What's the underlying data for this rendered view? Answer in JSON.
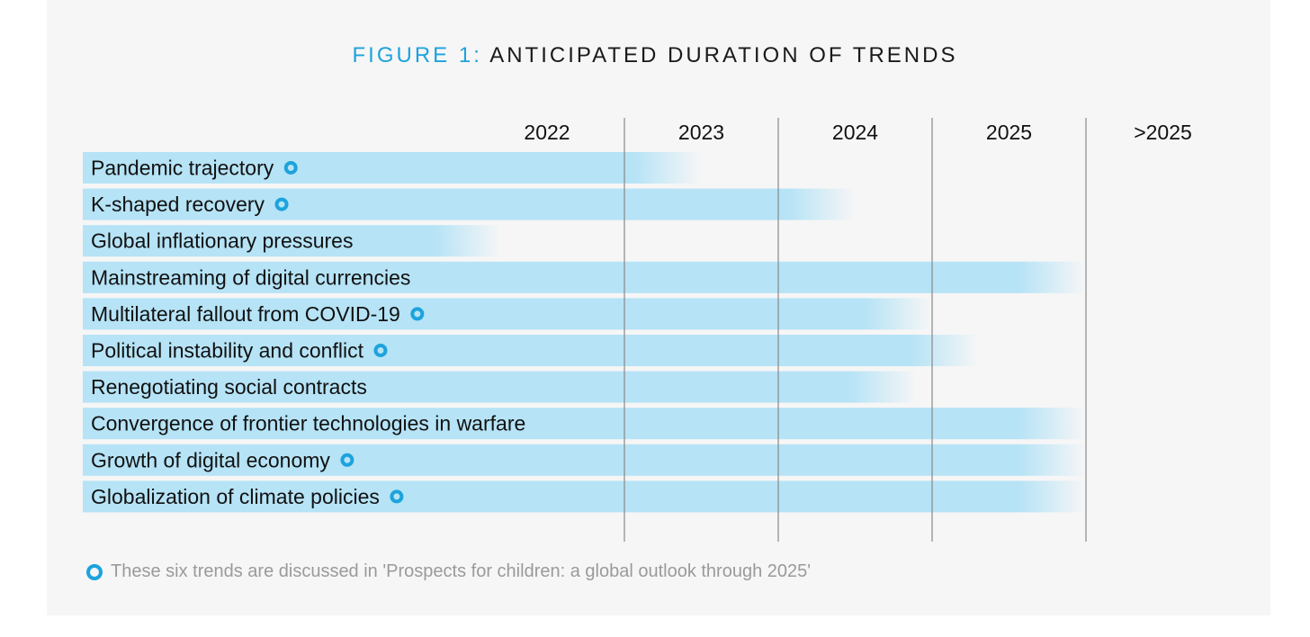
{
  "figure_title": {
    "prefix": "FIGURE 1:",
    "main": "ANTICIPATED DURATION OF TRENDS"
  },
  "footnote": {
    "text": "These six trends are discussed in 'Prospects for children: a global outlook through 2025'",
    "marker_icon": "ring-marker-icon"
  },
  "colors": {
    "accent": "#1ca3dc",
    "bar": "#b6e3f6",
    "text": "#111111",
    "grid": "#888888",
    "note": "#9a9a9a"
  },
  "chart_data": {
    "type": "bar",
    "orientation": "horizontal",
    "x_categories": [
      "2022",
      "2023",
      "2024",
      "2025",
      ">2025"
    ],
    "unit": "years",
    "bars_fade_out_at_end": true,
    "series": [
      {
        "label": "Pandemic trajectory",
        "end_year": 2023.5,
        "marked": true
      },
      {
        "label": "K-shaped recovery",
        "end_year": 2024.5,
        "marked": true
      },
      {
        "label": "Global inflationary pressures",
        "end_year": 2022.2,
        "marked": false
      },
      {
        "label": "Mainstreaming of digital currencies",
        "end_year": 2026,
        "marked": false
      },
      {
        "label": "Multilateral fallout from COVID-19",
        "end_year": 2025.0,
        "marked": true
      },
      {
        "label": "Political instability and conflict",
        "end_year": 2025.3,
        "marked": true
      },
      {
        "label": "Renegotiating social contracts",
        "end_year": 2024.9,
        "marked": false
      },
      {
        "label": "Convergence of frontier technologies in warfare",
        "end_year": 2026,
        "marked": false
      },
      {
        "label": "Growth of digital economy",
        "end_year": 2026,
        "marked": true
      },
      {
        "label": "Globalization of climate policies",
        "end_year": 2026,
        "marked": true
      }
    ]
  }
}
